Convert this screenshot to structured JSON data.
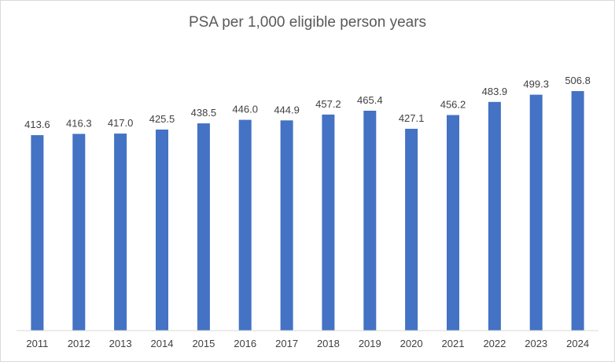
{
  "chart_data": {
    "type": "bar",
    "title": "PSA per 1,000 eligible person years",
    "categories": [
      "2011",
      "2012",
      "2013",
      "2014",
      "2015",
      "2016",
      "2017",
      "2018",
      "2019",
      "2020",
      "2021",
      "2022",
      "2023",
      "2024"
    ],
    "values": [
      413.6,
      416.3,
      417.0,
      425.5,
      438.5,
      446.0,
      444.9,
      457.2,
      465.4,
      427.1,
      456.2,
      483.9,
      499.3,
      506.8
    ],
    "value_labels": [
      "413.6",
      "416.3",
      "417.0",
      "425.5",
      "438.5",
      "446.0",
      "444.9",
      "457.2",
      "465.4",
      "427.1",
      "456.2",
      "483.9",
      "499.3",
      "506.8"
    ],
    "ylim": [
      0,
      580
    ],
    "grid": false,
    "legend": "none",
    "bar_color": "#4472c4"
  }
}
